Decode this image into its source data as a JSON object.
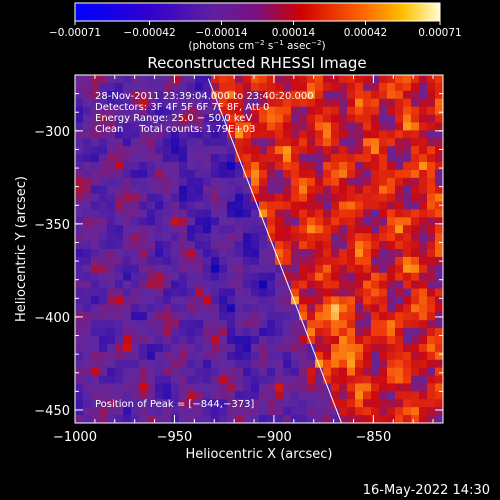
{
  "chart_data": {
    "type": "heatmap",
    "title": "Reconstructed RHESSI Image",
    "xlabel": "Heliocentric X (arcsec)",
    "ylabel": "Heliocentric Y (arcsec)",
    "xlim": [
      -1000,
      -815
    ],
    "ylim": [
      -457,
      -270
    ],
    "x_ticks": [
      -1000,
      -950,
      -900,
      -850
    ],
    "x_tick_labels": [
      "−1000",
      "−950",
      "−900",
      "−850"
    ],
    "y_ticks": [
      -300,
      -350,
      -400,
      -450
    ],
    "y_tick_labels": [
      "−300",
      "−350",
      "−400",
      "−450"
    ],
    "colorbar": {
      "range": [
        -0.00071,
        0.00071
      ],
      "ticks": [
        -0.00071,
        -0.00042,
        -0.00014,
        0.00014,
        0.00042,
        0.00071
      ],
      "tick_labels": [
        "−0.00071",
        "−0.00042",
        "−0.00014",
        "0.00014",
        "0.00042",
        "0.00071"
      ],
      "label_pre": "(photons cm",
      "label_exp1": "−2",
      "label_mid": " s",
      "label_exp2": "−1",
      "label_mid2": " asec",
      "label_exp3": "−2",
      "label_post": ")"
    },
    "info_lines": [
      "28-Nov-2011 23:39:04.000 to 23:40:20.000",
      "Detectors: 3F 4F 5F 6F 7F 8F, Att 0",
      "Energy Range: 25.0 − 50.0 keV",
      "Clean     Total counts: 1.79E+03"
    ],
    "peak_label": "Position of Peak = [−844,−373]",
    "peak_position": [
      -844,
      -373
    ],
    "limb_line": [
      [
        -933,
        -272
      ],
      [
        -866,
        -457
      ]
    ]
  },
  "footer": {
    "timestamp": "16-May-2022 14:30"
  }
}
